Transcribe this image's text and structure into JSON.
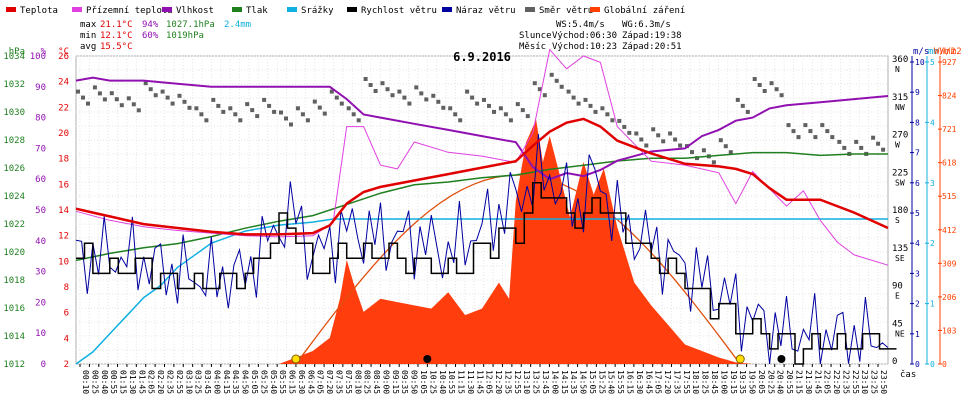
{
  "legend": [
    {
      "label": "Teplota",
      "color": "#e00000"
    },
    {
      "label": "Přízemní teplota",
      "color": "#e040e0"
    },
    {
      "label": "Vlhkost",
      "color": "#9010b0"
    },
    {
      "label": "Tlak",
      "color": "#208020"
    },
    {
      "label": "Srážky",
      "color": "#10b0e0"
    },
    {
      "label": "Rychlost větru",
      "color": "#000000"
    },
    {
      "label": "Náraz větru",
      "color": "#0000a0"
    },
    {
      "label": "Směr větru",
      "color": "#606060"
    },
    {
      "label": "Globální záření",
      "color": "#ff4000"
    }
  ],
  "stats": {
    "max": {
      "label": "max",
      "temp": "21.1°C",
      "hum": "94%",
      "press": "1027.1hPa",
      "rain": "2.4mm"
    },
    "min": {
      "label": "min",
      "temp": "12.1°C",
      "hum": "60%",
      "press": "1019hPa"
    },
    "avg": {
      "label": "avg",
      "temp": "15.5°C"
    }
  },
  "wind_info": {
    "ws": "WS:5.4m/s",
    "wg": "WG:6.3m/s"
  },
  "sun_info": {
    "label": "Slunce",
    "rise": "Východ:06:30",
    "set": "Západ:19:38"
  },
  "moon_info": {
    "label": "Měsíc",
    "rise": "Východ:10:23",
    "set": "Západ:20:51"
  },
  "date_title": "6.9.2016",
  "time_unit": "čas",
  "colors": {
    "temp": "#e00000",
    "dew": "#e040e0",
    "hum": "#9010b0",
    "press": "#208020",
    "rain": "#10b0e0",
    "wind": "#000000",
    "gust": "#0000a0",
    "dir": "#606060",
    "solar": "#ff4000",
    "solar_fill": "#ff3300",
    "sun_curve": "#e05010",
    "hpa_axis": "#208020",
    "pct_axis": "#9010b0",
    "c_axis": "#e00000",
    "ms_axis": "#0000a0",
    "mm_axis": "#10b0e0",
    "wm2_axis": "#ff4000"
  },
  "chart_data": {
    "type": "line",
    "title": "6.9.2016",
    "x_unit": "čas",
    "x_range": [
      "00:00",
      "23:59"
    ],
    "x_ticks": [
      "00:10",
      "00:25",
      "00:40",
      "00:55",
      "01:15",
      "01:30",
      "01:45",
      "02:05",
      "02:20",
      "02:35",
      "02:55",
      "03:10",
      "03:25",
      "03:45",
      "04:00",
      "04:15",
      "04:35",
      "04:50",
      "05:05",
      "05:25",
      "05:40",
      "05:55",
      "06:15",
      "06:30",
      "06:45",
      "07:05",
      "07:20",
      "07:35",
      "07:55",
      "08:10",
      "08:25",
      "08:45",
      "09:00",
      "09:15",
      "09:35",
      "09:50",
      "10:05",
      "10:25",
      "10:40",
      "10:55",
      "11:15",
      "11:30",
      "11:45",
      "12:05",
      "12:20",
      "12:35",
      "12:55",
      "13:10",
      "13:25",
      "13:45",
      "14:00",
      "14:15",
      "14:35",
      "14:50",
      "15:05",
      "15:25",
      "15:40",
      "15:55",
      "16:15",
      "16:30",
      "16:45",
      "17:05",
      "17:20",
      "17:35",
      "17:55",
      "18:10",
      "18:25",
      "18:45",
      "19:00",
      "19:15",
      "19:35",
      "19:50",
      "20:05",
      "20:25",
      "20:40",
      "20:55",
      "21:15",
      "21:30",
      "21:45",
      "22:05",
      "22:20",
      "22:35",
      "22:55",
      "23:10",
      "23:25",
      "23:50"
    ],
    "axes": {
      "hpa": {
        "label": "hPa",
        "min": 1012,
        "max": 1034,
        "ticks": [
          "1034",
          "1032",
          "1030",
          "1028",
          "1026",
          "1024",
          "1022",
          "1020",
          "1018",
          "1016",
          "1014",
          "1012"
        ]
      },
      "percent": {
        "label": "%",
        "min": 0,
        "max": 100,
        "ticks": [
          "100",
          "90",
          "80",
          "70",
          "60",
          "50",
          "40",
          "30",
          "20",
          "10",
          "0"
        ]
      },
      "celsius": {
        "label": "°C",
        "min": 2,
        "max": 26,
        "ticks": [
          "26",
          "24",
          "22",
          "20",
          "18",
          "16",
          "14",
          "12",
          "10",
          "8",
          "6",
          "4",
          "2"
        ]
      },
      "direction": {
        "label": "",
        "ticks": [
          "360 N",
          "315 NW",
          "270 W",
          "225 SW",
          "180 S",
          "135 SE",
          "90 E",
          "45 NE",
          "0"
        ]
      },
      "wind": {
        "label": "m/s",
        "min": 0,
        "max": 10,
        "ticks": [
          "10",
          "9",
          "8",
          "7",
          "6",
          "5",
          "4",
          "3",
          "2",
          "1",
          "0"
        ]
      },
      "rain": {
        "label": "mm",
        "min": 0,
        "max": 5,
        "ticks": [
          "5",
          "4",
          "3",
          "2",
          "1",
          "0"
        ]
      },
      "solar": {
        "label": "W/m2",
        "min": 0,
        "max": 927,
        "ticks": [
          "927",
          "824",
          "721",
          "618",
          "515",
          "412",
          "309",
          "206",
          "103",
          "0"
        ]
      }
    },
    "series": [
      {
        "name": "Teplota",
        "unit": "°C",
        "x": [
          0,
          0.5,
          1,
          2,
          3,
          4,
          5,
          6,
          7,
          7.5,
          8,
          8.5,
          9,
          10,
          11,
          12,
          13,
          13.5,
          14,
          14.5,
          15,
          15.5,
          16,
          17,
          18,
          19,
          19.5,
          20,
          20.5,
          21,
          22,
          23,
          24
        ],
        "values": [
          14.1,
          13.8,
          13.5,
          12.9,
          12.6,
          12.3,
          12.1,
          12.1,
          12.2,
          12.8,
          14.5,
          15.4,
          15.8,
          16.3,
          16.8,
          17.3,
          17.8,
          19,
          20.1,
          20.8,
          21.1,
          20.5,
          19.4,
          18.4,
          17.6,
          17.4,
          17.2,
          16.8,
          15.7,
          14.8,
          14.8,
          13.8,
          12.6
        ]
      },
      {
        "name": "Přízemní teplota",
        "unit": "°C",
        "x": [
          0,
          1,
          2,
          3,
          4,
          5,
          6,
          7,
          7.6,
          8,
          8.5,
          9,
          9.5,
          10,
          11,
          12,
          13,
          13.5,
          14,
          14.5,
          15,
          15.5,
          16,
          17,
          18,
          19,
          19.5,
          20,
          21,
          21.5,
          22,
          22.5,
          23,
          24
        ],
        "values": [
          13.9,
          13.2,
          12.7,
          12.4,
          12.2,
          12,
          11.9,
          12,
          13,
          20.5,
          20.5,
          17.5,
          17.2,
          19.3,
          18.5,
          18.2,
          17.7,
          20,
          26.5,
          25,
          26,
          25.5,
          20.5,
          17.8,
          17.5,
          16.9,
          14.5,
          17,
          14.3,
          15.5,
          13.2,
          11.5,
          10.5,
          9.7
        ]
      },
      {
        "name": "Vlhkost",
        "unit": "%",
        "x": [
          0,
          0.5,
          1,
          2,
          3,
          4,
          5,
          6,
          7,
          7.5,
          8,
          8.5,
          9,
          10,
          11,
          12,
          13,
          13.5,
          14,
          14.5,
          15,
          15.5,
          16,
          17,
          18,
          18.5,
          19,
          19.5,
          20,
          20.5,
          21,
          22,
          23,
          24
        ],
        "values": [
          92,
          93,
          92,
          92,
          91,
          90,
          90,
          90,
          90,
          90,
          86,
          81,
          80,
          78,
          76,
          74,
          72,
          64,
          60,
          62,
          61,
          63,
          66,
          69,
          70,
          74,
          76,
          79,
          80,
          83,
          84,
          85,
          86,
          87
        ]
      },
      {
        "name": "Tlak",
        "unit": "hPa",
        "x": [
          0,
          1,
          2,
          3,
          4,
          5,
          6,
          7,
          8,
          9,
          10,
          11,
          12,
          13,
          14,
          15,
          16,
          17,
          18,
          19,
          20,
          21,
          22,
          23,
          24
        ],
        "values": [
          1019.4,
          1019.9,
          1020.3,
          1020.6,
          1021.1,
          1021.7,
          1022.2,
          1022.6,
          1023.4,
          1024.2,
          1024.8,
          1025.0,
          1025.3,
          1025.5,
          1025.9,
          1026.2,
          1026.5,
          1026.7,
          1026.7,
          1026.9,
          1027.1,
          1027.1,
          1026.9,
          1027.0,
          1027.0
        ]
      },
      {
        "name": "Srážky",
        "unit": "mm",
        "x": [
          0,
          0.5,
          1,
          1.5,
          2,
          2.5,
          3,
          3.5,
          4,
          5,
          6,
          7,
          7.6,
          8,
          12,
          24
        ],
        "values": [
          0,
          0.2,
          0.5,
          0.8,
          1.1,
          1.3,
          1.6,
          1.8,
          2.0,
          2.2,
          2.3,
          2.35,
          2.4,
          2.4,
          2.4,
          2.4
        ]
      },
      {
        "name": "Rychlost větru",
        "unit": "m/s",
        "x": [
          0,
          1,
          2,
          3,
          4,
          5,
          6,
          6.5,
          7,
          8,
          9,
          10,
          11,
          12,
          13,
          13.5,
          14,
          14.5,
          15,
          15.5,
          16,
          17,
          18,
          19,
          20,
          21,
          22,
          23,
          24
        ],
        "values": [
          3.5,
          3.3,
          3.2,
          2.7,
          2.6,
          2.7,
          4.5,
          4.5,
          3.0,
          3.8,
          3.8,
          3.5,
          3.0,
          3.8,
          4.5,
          5.8,
          5.5,
          5.2,
          4.9,
          5.5,
          4.5,
          3.5,
          2.7,
          1.8,
          1.0,
          0.6,
          0.6,
          0.8,
          0.6
        ]
      },
      {
        "name": "Náraz větru",
        "unit": "m/s",
        "x": [
          0,
          1,
          2,
          3,
          4,
          5,
          6,
          6.5,
          7,
          8,
          9,
          10,
          11,
          12,
          13,
          13.5,
          13.9,
          14.3,
          14.8,
          15.2,
          15.6,
          16,
          16.5,
          17,
          18,
          19,
          20,
          21,
          22,
          23,
          23.5,
          24
        ],
        "values": [
          3.5,
          3.6,
          3.4,
          3.0,
          2.8,
          3.0,
          4.6,
          5.0,
          3.5,
          4.5,
          4.2,
          4.2,
          3.7,
          4.5,
          5.5,
          6.0,
          6.3,
          5.8,
          5.0,
          6.2,
          5.8,
          4.8,
          4.3,
          4.0,
          3.2,
          2.4,
          1.5,
          1.0,
          1.0,
          1.0,
          0.8,
          1.0
        ]
      },
      {
        "name": "Směr větru",
        "unit": "°",
        "x": [
          0,
          0.5,
          1,
          1.5,
          2,
          2.5,
          3,
          3.5,
          4,
          4.5,
          5,
          5.5,
          6,
          6.5,
          7,
          7.5,
          8,
          8.5,
          9,
          9.5,
          10,
          10.5,
          11,
          11.5,
          12,
          12.5,
          13,
          13.5,
          14,
          14.5,
          15,
          15.5,
          16,
          16.5,
          17,
          17.5,
          18,
          18.5,
          19,
          19.5,
          20,
          20.5,
          21,
          21.5,
          22,
          22.5,
          23,
          23.5
        ],
        "values": [
          320,
          325,
          318,
          312,
          330,
          320,
          315,
          300,
          310,
          300,
          305,
          310,
          295,
          300,
          308,
          320,
          300,
          335,
          330,
          320,
          325,
          315,
          300,
          320,
          310,
          300,
          305,
          330,
          340,
          320,
          310,
          300,
          285,
          270,
          275,
          270,
          255,
          250,
          262,
          310,
          335,
          330,
          280,
          280,
          280,
          260,
          260,
          265
        ]
      },
      {
        "name": "Globální záření",
        "unit": "W/m2",
        "x": [
          6.0,
          6.5,
          7,
          7.5,
          7.8,
          8.0,
          8.2,
          8.5,
          9.0,
          9.5,
          10,
          10.5,
          11,
          11.5,
          12,
          12.5,
          12.8,
          13.0,
          13.3,
          13.6,
          13.8,
          14.0,
          14.3,
          14.6,
          15.0,
          15.3,
          15.6,
          16.0,
          16.5,
          17,
          17.5,
          18,
          18.5,
          19,
          19.5,
          20
        ],
        "values": [
          0,
          20,
          40,
          80,
          200,
          320,
          250,
          160,
          200,
          190,
          180,
          170,
          220,
          150,
          170,
          250,
          200,
          500,
          680,
          750,
          620,
          700,
          580,
          450,
          620,
          520,
          600,
          420,
          250,
          180,
          120,
          60,
          40,
          20,
          5,
          0
        ]
      }
    ],
    "theoretical_solar_max": 580,
    "markers": {
      "sun_rise": "06:30",
      "sun_set": "19:38",
      "moon_rise": "10:23",
      "moon_set": "20:51"
    },
    "grid": true,
    "legend_position": "top"
  }
}
